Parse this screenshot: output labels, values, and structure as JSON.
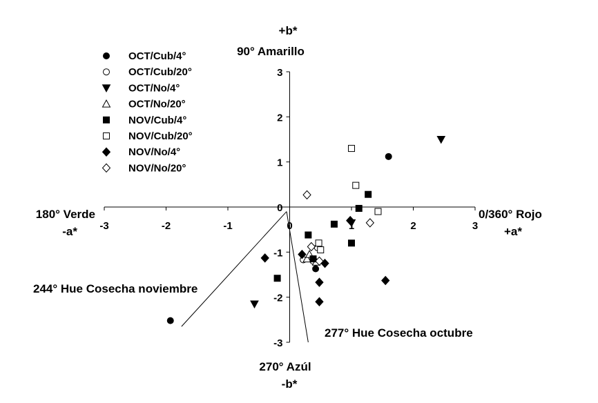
{
  "chart_data": {
    "type": "scatter",
    "xlim": [
      -3,
      3
    ],
    "ylim": [
      -3,
      3
    ],
    "x_ticks": [
      "-3",
      "-2",
      "-1",
      "0",
      "1",
      "2",
      "3"
    ],
    "y_ticks": [
      "3",
      "2",
      "1",
      "0",
      "-1",
      "-2",
      "-3"
    ],
    "grid": false,
    "legend_position": "top-left",
    "axis_labels": {
      "top_line1": "+b*",
      "top_line2": "90° Amarillo",
      "left_line1": "180° Verde",
      "left_line2": "-a*",
      "right_line1": "0/360° Rojo",
      "right_line2": "+a*",
      "bottom_line1": "270° Azúl",
      "bottom_line2": "-b*"
    },
    "annotations": {
      "hue_nov": "244° Hue Cosecha noviembre",
      "hue_oct": "277° Hue Cosecha octubre"
    },
    "hue_lines": [
      {
        "angle": 244,
        "from": [
          -0.05,
          -0.1
        ],
        "to": [
          -1.75,
          -2.65
        ]
      },
      {
        "angle": 277,
        "from": [
          -0.05,
          -0.1
        ],
        "to": [
          0.3,
          -3.0
        ]
      }
    ],
    "series": [
      {
        "name": "OCT/Cub/4°",
        "marker": "circle",
        "filled": true,
        "points": [
          [
            1.6,
            1.12
          ],
          [
            -1.93,
            -2.52
          ],
          [
            0.42,
            -1.37
          ]
        ]
      },
      {
        "name": "OCT/Cub/20°",
        "marker": "circle",
        "filled": false,
        "points": [
          [
            0.22,
            -1.17
          ],
          [
            0.45,
            -0.9
          ],
          [
            0.38,
            -1.2
          ]
        ]
      },
      {
        "name": "OCT/No/4°",
        "marker": "triangle-down",
        "filled": true,
        "points": [
          [
            2.45,
            1.5
          ],
          [
            -0.57,
            -2.15
          ],
          [
            1.0,
            -0.35
          ]
        ]
      },
      {
        "name": "OCT/No/20°",
        "marker": "triangle-up",
        "filled": false,
        "points": [
          [
            0.28,
            -1.15
          ],
          [
            0.43,
            -1.22
          ],
          [
            0.32,
            -1.05
          ]
        ]
      },
      {
        "name": "NOV/Cub/4°",
        "marker": "square",
        "filled": true,
        "points": [
          [
            1.27,
            0.28
          ],
          [
            1.12,
            -0.03
          ],
          [
            0.72,
            -0.38
          ],
          [
            1.0,
            -0.8
          ],
          [
            0.3,
            -0.62
          ],
          [
            0.38,
            -1.15
          ],
          [
            -0.2,
            -1.58
          ]
        ]
      },
      {
        "name": "NOV/Cub/20°",
        "marker": "square",
        "filled": false,
        "points": [
          [
            1.0,
            1.3
          ],
          [
            1.07,
            0.48
          ],
          [
            1.43,
            -0.1
          ],
          [
            0.47,
            -0.8
          ],
          [
            0.5,
            -0.95
          ]
        ]
      },
      {
        "name": "NOV/No/4°",
        "marker": "diamond",
        "filled": true,
        "points": [
          [
            0.98,
            -0.3
          ],
          [
            0.2,
            -1.05
          ],
          [
            -0.4,
            -1.13
          ],
          [
            0.57,
            -1.25
          ],
          [
            0.48,
            -1.67
          ],
          [
            0.48,
            -2.1
          ],
          [
            1.55,
            -1.63
          ]
        ]
      },
      {
        "name": "NOV/No/20°",
        "marker": "diamond",
        "filled": false,
        "points": [
          [
            0.28,
            0.27
          ],
          [
            1.3,
            -0.35
          ],
          [
            0.35,
            -0.88
          ],
          [
            0.48,
            -1.2
          ]
        ]
      }
    ]
  }
}
